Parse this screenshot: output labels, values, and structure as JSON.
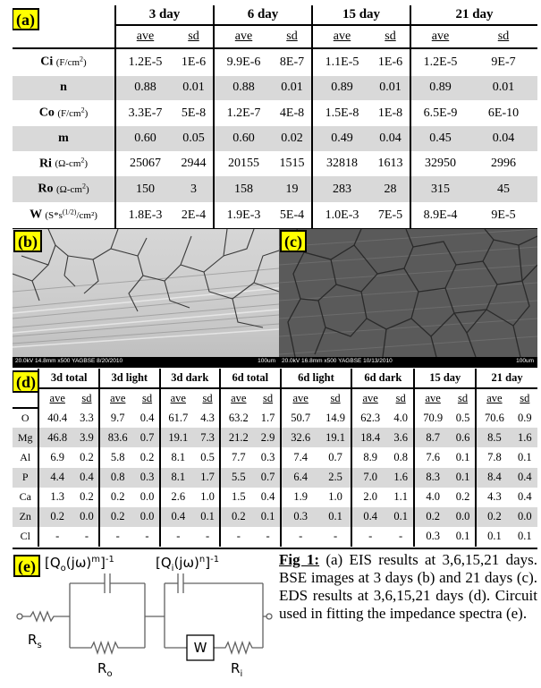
{
  "panel_labels": {
    "a": "(a)",
    "b": "(b)",
    "c": "(c)",
    "d": "(d)",
    "e": "(e)"
  },
  "table_a": {
    "days": [
      "3 day",
      "6 day",
      "15 day",
      "21 day"
    ],
    "sub": [
      "ave",
      "sd"
    ],
    "rows": [
      {
        "label": "Ci",
        "unit": "(F/cm",
        "unit_sup": "2",
        "unit_end": ")",
        "values": [
          "1.2E-5",
          "1E-6",
          "9.9E-6",
          "8E-7",
          "1.1E-5",
          "1E-6",
          "1.2E-5",
          "9E-7"
        ]
      },
      {
        "label": "n",
        "unit": "",
        "unit_sup": "",
        "unit_end": "",
        "values": [
          "0.88",
          "0.01",
          "0.88",
          "0.01",
          "0.89",
          "0.01",
          "0.89",
          "0.01"
        ]
      },
      {
        "label": "Co",
        "unit": "(F/cm",
        "unit_sup": "2",
        "unit_end": ")",
        "values": [
          "3.3E-7",
          "5E-8",
          "1.2E-7",
          "4E-8",
          "1.5E-8",
          "1E-8",
          "6.5E-9",
          "6E-10"
        ]
      },
      {
        "label": "m",
        "unit": "",
        "unit_sup": "",
        "unit_end": "",
        "values": [
          "0.60",
          "0.05",
          "0.60",
          "0.02",
          "0.49",
          "0.04",
          "0.45",
          "0.04"
        ]
      },
      {
        "label": "Ri",
        "unit": "(Ω-cm",
        "unit_sup": "2",
        "unit_end": ")",
        "values": [
          "25067",
          "2944",
          "20155",
          "1515",
          "32818",
          "1613",
          "32950",
          "2996"
        ]
      },
      {
        "label": "Ro",
        "unit": "(Ω-cm",
        "unit_sup": "2",
        "unit_end": ")",
        "values": [
          "150",
          "3",
          "158",
          "19",
          "283",
          "28",
          "315",
          "45"
        ]
      },
      {
        "label": "W",
        "unit": "(S*s",
        "unit_sup": "(1/2)",
        "unit_end": "/cm²)",
        "values": [
          "1.8E-3",
          "2E-4",
          "1.9E-3",
          "5E-4",
          "1.0E-3",
          "7E-5",
          "8.9E-4",
          "9E-5"
        ]
      }
    ]
  },
  "images": {
    "b_caption": "20.0kV 14.8mm x500 YAGBSE 8/20/2010",
    "b_scale": "100um",
    "c_caption": "20.0kV 16.8mm x500 YAGBSE 10/13/2010",
    "c_scale": "100um"
  },
  "table_d": {
    "groups": [
      "3d total",
      "3d light",
      "3d dark",
      "6d total",
      "6d light",
      "6d dark",
      "15 day",
      "21 day"
    ],
    "sub": [
      "ave",
      "sd"
    ],
    "rows": [
      {
        "el": "O",
        "values": [
          "40.4",
          "3.3",
          "9.7",
          "0.4",
          "61.7",
          "4.3",
          "63.2",
          "1.7",
          "50.7",
          "14.9",
          "62.3",
          "4.0",
          "70.9",
          "0.5",
          "70.6",
          "0.9"
        ]
      },
      {
        "el": "Mg",
        "values": [
          "46.8",
          "3.9",
          "83.6",
          "0.7",
          "19.1",
          "7.3",
          "21.2",
          "2.9",
          "32.6",
          "19.1",
          "18.4",
          "3.6",
          "8.7",
          "0.6",
          "8.5",
          "1.6"
        ]
      },
      {
        "el": "Al",
        "values": [
          "6.9",
          "0.2",
          "5.8",
          "0.2",
          "8.1",
          "0.5",
          "7.7",
          "0.3",
          "7.4",
          "0.7",
          "8.9",
          "0.8",
          "7.6",
          "0.1",
          "7.8",
          "0.1"
        ]
      },
      {
        "el": "P",
        "values": [
          "4.4",
          "0.4",
          "0.8",
          "0.3",
          "8.1",
          "1.7",
          "5.5",
          "0.7",
          "6.4",
          "2.5",
          "7.0",
          "1.6",
          "8.3",
          "0.1",
          "8.4",
          "0.4"
        ]
      },
      {
        "el": "Ca",
        "values": [
          "1.3",
          "0.2",
          "0.2",
          "0.0",
          "2.6",
          "1.0",
          "1.5",
          "0.4",
          "1.9",
          "1.0",
          "2.0",
          "1.1",
          "4.0",
          "0.2",
          "4.3",
          "0.4"
        ]
      },
      {
        "el": "Zn",
        "values": [
          "0.2",
          "0.0",
          "0.2",
          "0.0",
          "0.4",
          "0.1",
          "0.2",
          "0.1",
          "0.3",
          "0.1",
          "0.4",
          "0.1",
          "0.2",
          "0.0",
          "0.2",
          "0.0"
        ]
      },
      {
        "el": "Cl",
        "values": [
          "-",
          "-",
          "-",
          "-",
          "-",
          "-",
          "-",
          "-",
          "-",
          "-",
          "-",
          "-",
          "0.3",
          "0.1",
          "0.1",
          "0.1"
        ]
      }
    ]
  },
  "circuit": {
    "qo": "[Q",
    "qo_sub": "o",
    "qo_mid": "(jω)",
    "qo_exp": "m",
    "qo_end": "]",
    "qo_pow": "-1",
    "qi": "[Q",
    "qi_sub": "i",
    "qi_mid": "(jω)",
    "qi_exp": "n",
    "qi_end": "]",
    "qi_pow": "-1",
    "rs": "R",
    "rs_sub": "s",
    "ro": "R",
    "ro_sub": "o",
    "ri": "R",
    "ri_sub": "i",
    "w": "W"
  },
  "figure_caption": {
    "title": "Fig 1:",
    "text": " (a) EIS results at 3,6,15,21 days. BSE images at 3 days (b) and 21 days (c). EDS results at 3,6,15,21 days (d). Circuit used in fitting the impedance spectra (e)."
  }
}
